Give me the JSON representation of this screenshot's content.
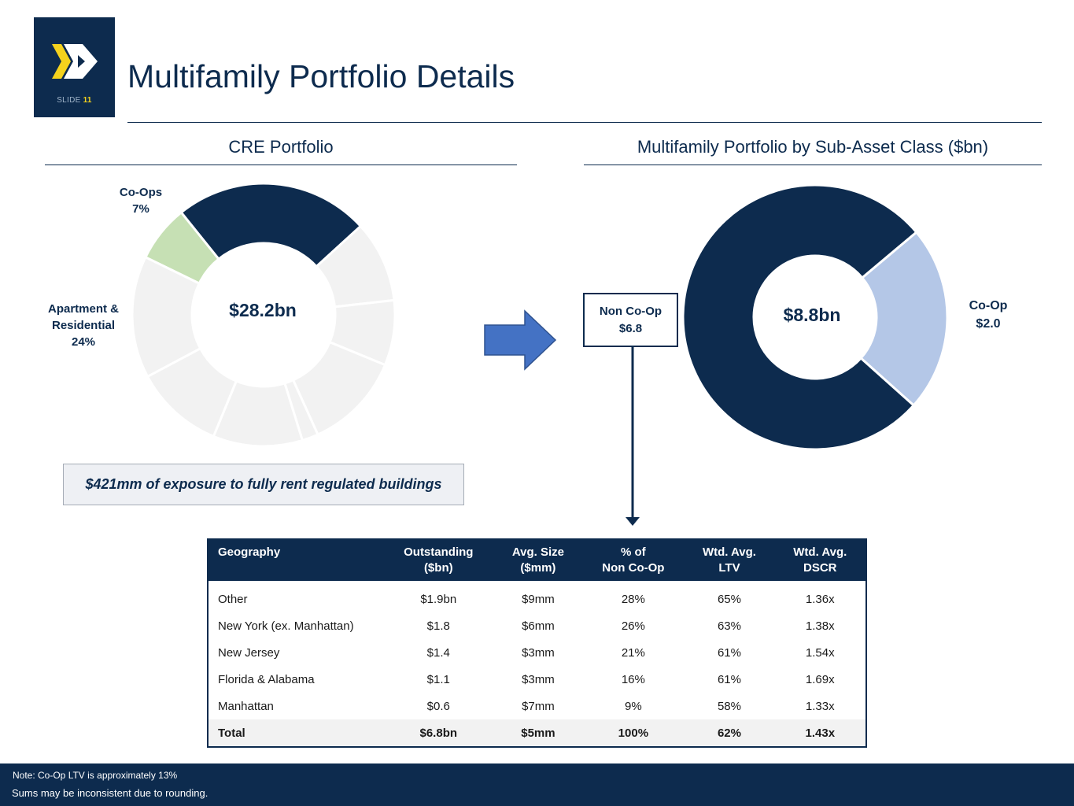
{
  "header": {
    "slide_label": "SLIDE",
    "slide_number": "11",
    "title": "Multifamily Portfolio Details"
  },
  "left_section": {
    "title": "CRE Portfolio",
    "center_value": "$28.2bn",
    "callout": "$421mm of exposure to fully rent regulated buildings"
  },
  "right_section": {
    "title": "Multifamily Portfolio by Sub-Asset Class ($bn)",
    "center_value": "$8.8bn",
    "non_coop_label": "Non Co-Op",
    "non_coop_value": "$6.8",
    "coop_label": "Co-Op",
    "coop_value": "$2.0"
  },
  "chart_data": [
    {
      "type": "pie",
      "title": "CRE Portfolio",
      "total": "$28.2bn",
      "labeled_slices": [
        {
          "name": "Co-Ops",
          "share_pct": 7,
          "label": "7%"
        },
        {
          "name": "Apartment & Residential",
          "share_pct": 24,
          "label": "24%"
        }
      ],
      "slices_pct": [
        7,
        24,
        10,
        8,
        12,
        2,
        11,
        11,
        15
      ],
      "slice_kinds": [
        "coops",
        "apartment",
        "other",
        "other",
        "other",
        "other",
        "other",
        "other",
        "other"
      ],
      "colors": {
        "coops": "#c6e0b4",
        "apartment": "#0d2b4e",
        "other": "#f2f2f2"
      }
    },
    {
      "type": "pie",
      "title": "Multifamily Portfolio by Sub-Asset Class ($bn)",
      "total": "$8.8bn",
      "categories": [
        "Co-Op",
        "Non Co-Op"
      ],
      "values": [
        2.0,
        6.8
      ],
      "colors": [
        "#b4c7e7",
        "#0d2b4e"
      ]
    }
  ],
  "table": {
    "headers": [
      {
        "line1": "Geography",
        "line2": ""
      },
      {
        "line1": "Outstanding",
        "line2": "($bn)"
      },
      {
        "line1": "Avg. Size",
        "line2": "($mm)"
      },
      {
        "line1": "% of",
        "line2": "Non Co-Op"
      },
      {
        "line1": "Wtd. Avg.",
        "line2": "LTV"
      },
      {
        "line1": "Wtd. Avg.",
        "line2": "DSCR"
      }
    ],
    "rows": [
      [
        "Other",
        "$1.9bn",
        "$9mm",
        "28%",
        "65%",
        "1.36x"
      ],
      [
        "New York (ex. Manhattan)",
        "$1.8",
        "$6mm",
        "26%",
        "63%",
        "1.38x"
      ],
      [
        "New Jersey",
        "$1.4",
        "$3mm",
        "21%",
        "61%",
        "1.54x"
      ],
      [
        "Florida & Alabama",
        "$1.1",
        "$3mm",
        "16%",
        "61%",
        "1.69x"
      ],
      [
        "Manhattan",
        "$0.6",
        "$7mm",
        "9%",
        "58%",
        "1.33x"
      ]
    ],
    "total": [
      "Total",
      "$6.8bn",
      "$5mm",
      "100%",
      "62%",
      "1.43x"
    ]
  },
  "footer": {
    "note1": "Note: Co-Op LTV is approximately 13%",
    "note2": "Sums may be inconsistent due to rounding."
  },
  "colors": {
    "navy": "#0d2b4e",
    "accent_yellow": "#f4d21d",
    "arrow_blue": "#4472c4"
  }
}
